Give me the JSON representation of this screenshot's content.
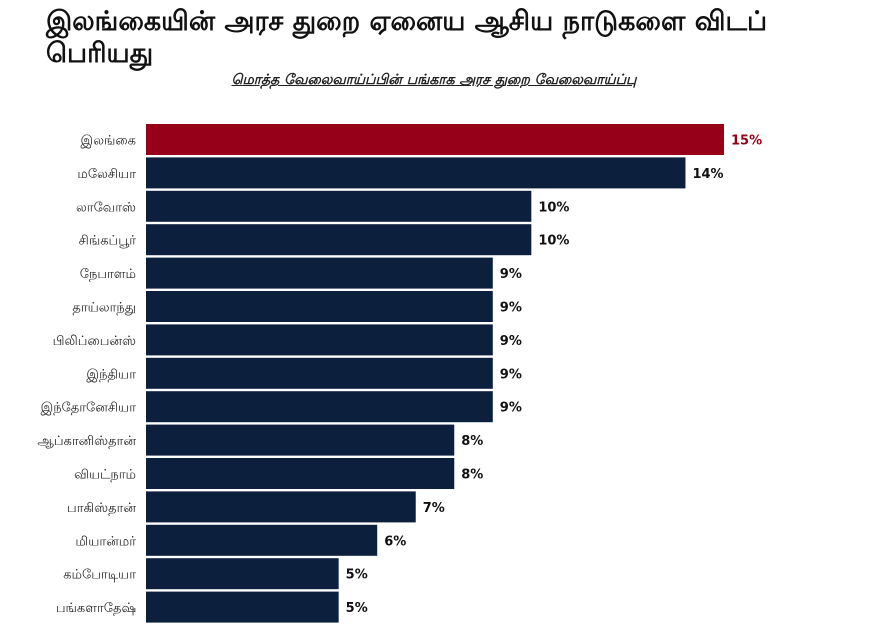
{
  "header": {
    "title": "இலங்கையின் அரச துறை ஏனைய ஆசிய நாடுகளை விடப் பெரியது",
    "subtitle": "மொத்த வேலைவாய்ப்பின் பங்காக அரச துறை வேலைவாய்ப்பு"
  },
  "colors": {
    "highlight": "#960018",
    "bar": "#0c1f3c",
    "highlight_text": "#960018",
    "text": "#111111"
  },
  "chart_data": {
    "type": "bar",
    "orientation": "horizontal",
    "title": "இலங்கையின் அரச துறை ஏனைய ஆசிய நாடுகளை விடப் பெரியது",
    "subtitle": "மொத்த வேலைவாய்ப்பின் பங்காக அரச துறை வேலைவாய்ப்பு",
    "categories": [
      "இலங்கை",
      "மலேசியா",
      "லாவோஸ்",
      "சிங்கப்பூர்",
      "நேபாளம்",
      "தாய்லாந்து",
      "பிலிப்பைன்ஸ்",
      "இந்தியா",
      "இந்தோனேசியா",
      "ஆப்கானிஸ்தான்",
      "வியட்நாம்",
      "பாகிஸ்தான்",
      "மியான்மர்",
      "கம்போடியா",
      "பங்களாதேஷ்"
    ],
    "values": [
      15,
      14,
      10,
      10,
      9,
      9,
      9,
      9,
      9,
      8,
      8,
      7,
      6,
      5,
      5
    ],
    "labels": [
      "15%",
      "14%",
      "10%",
      "10%",
      "9%",
      "9%",
      "9%",
      "9%",
      "9%",
      "8%",
      "8%",
      "7%",
      "6%",
      "5%",
      "5%"
    ],
    "highlight_index": 0,
    "xlim": [
      0,
      15
    ],
    "grid": false,
    "legend": "none"
  }
}
